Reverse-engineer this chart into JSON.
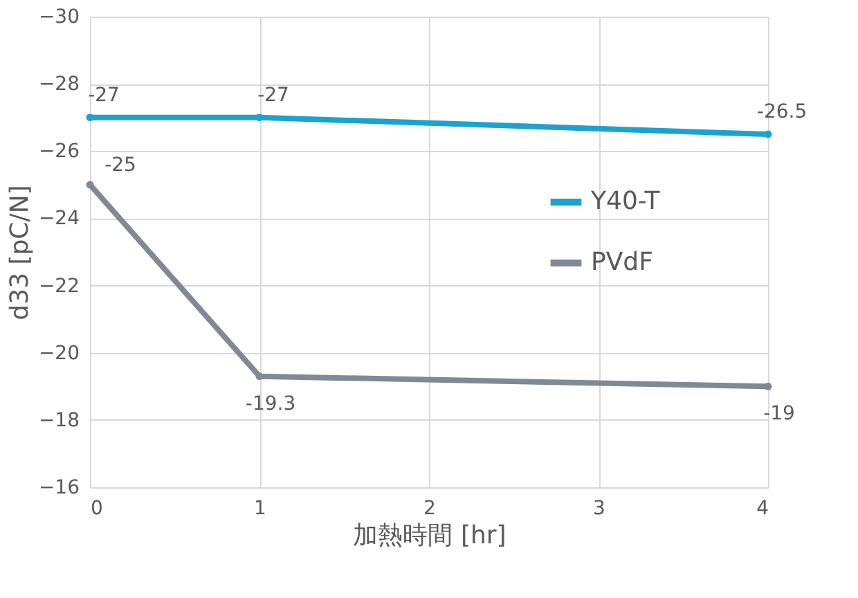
{
  "chart_data": {
    "type": "line",
    "xlabel": "加熱時間 [hr]",
    "ylabel": "d33 [pC/N]",
    "x": [
      0,
      1,
      4
    ],
    "xlim": [
      0,
      4
    ],
    "xticks": [
      0,
      1,
      2,
      3,
      4
    ],
    "ylim": [
      -16,
      -30
    ],
    "yticks": [
      -30,
      -28,
      -26,
      -24,
      -22,
      -20,
      -18,
      -16
    ],
    "series": [
      {
        "name": "Y40-T",
        "color": "#1ba3cf",
        "values": [
          -27,
          -27,
          -26.5
        ]
      },
      {
        "name": "PVdF",
        "color": "#7f8a95",
        "values": [
          -25,
          -19.3,
          -19
        ]
      }
    ],
    "grid": true,
    "legend": "right",
    "marker": "circle",
    "line_style": "solid",
    "data_labels": true
  }
}
